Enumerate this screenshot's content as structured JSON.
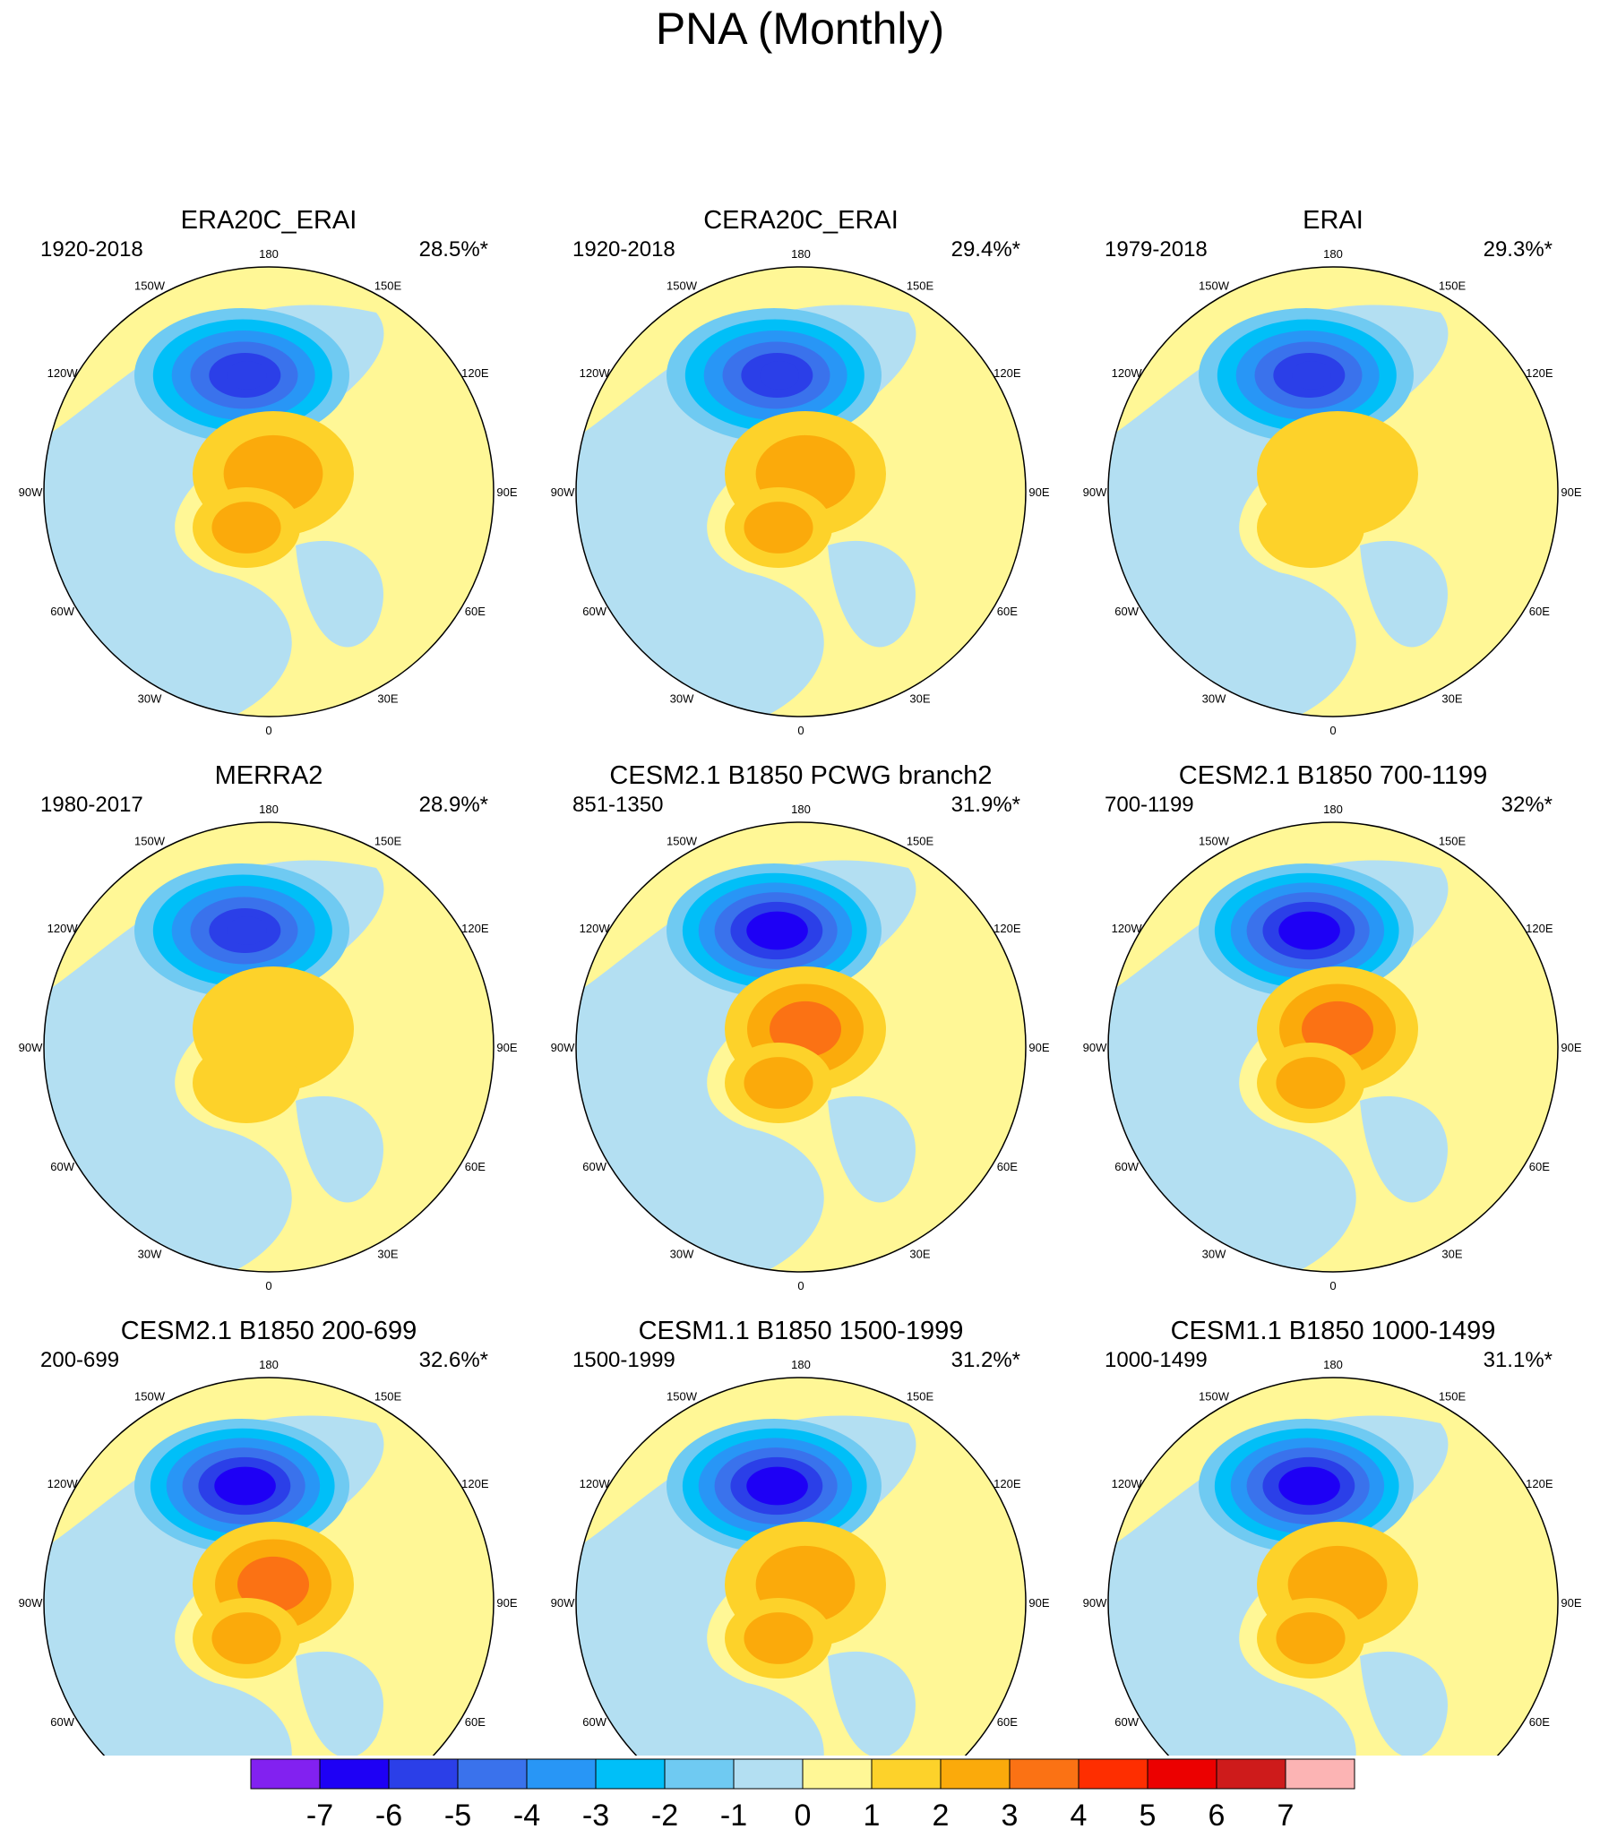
{
  "title": "PNA (Monthly)",
  "chart_data": {
    "type": "polar_contour_map_grid",
    "projection": "north polar stereographic",
    "longitude_labels": [
      "180",
      "150E",
      "120E",
      "90E",
      "60E",
      "30E",
      "0",
      "30W",
      "60W",
      "90W",
      "120W",
      "150W"
    ],
    "panels": [
      {
        "name": "ERA20C_ERAI",
        "period": "1920-2018",
        "variance": "28.5%*",
        "neg_peak": -5.6,
        "pos_peak": 2.6,
        "pos_secondary": 2.1
      },
      {
        "name": "CERA20C_ERAI",
        "period": "1920-2018",
        "variance": "29.4%*",
        "neg_peak": -5.5,
        "pos_peak": 2.4,
        "pos_secondary": 2.0
      },
      {
        "name": "ERAI",
        "period": "1979-2018",
        "variance": "29.3%*",
        "neg_peak": -5.4,
        "pos_peak": 1.8,
        "pos_secondary": 1.5
      },
      {
        "name": "MERRA2",
        "period": "1980-2017",
        "variance": "28.9%*",
        "neg_peak": -5.3,
        "pos_peak": 1.9,
        "pos_secondary": 1.6
      },
      {
        "name": "CESM2.1 B1850 PCWG branch2",
        "period": "851-1350",
        "variance": "31.9%*",
        "neg_peak": -6.4,
        "pos_peak": 3.3,
        "pos_secondary": 2.3
      },
      {
        "name": "CESM2.1 B1850 700-1199",
        "period": "700-1199",
        "variance": "32%*",
        "neg_peak": -6.3,
        "pos_peak": 3.4,
        "pos_secondary": 2.2
      },
      {
        "name": "CESM2.1 B1850 200-699",
        "period": "200-699",
        "variance": "32.6%*",
        "neg_peak": -6.2,
        "pos_peak": 3.3,
        "pos_secondary": 2.4
      },
      {
        "name": "CESM1.1 B1850 1500-1999",
        "period": "1500-1999",
        "variance": "31.2%*",
        "neg_peak": -6.1,
        "pos_peak": 2.8,
        "pos_secondary": 2.1
      },
      {
        "name": "CESM1.1 B1850 1000-1499",
        "period": "1000-1499",
        "variance": "31.1%*",
        "neg_peak": -6.2,
        "pos_peak": 2.8,
        "pos_secondary": 2.0
      }
    ],
    "colorbar": {
      "labels": [
        "-7",
        "-6",
        "-5",
        "-4",
        "-3",
        "-2",
        "-1",
        "0",
        "1",
        "2",
        "3",
        "4",
        "5",
        "6",
        "7"
      ],
      "colors": [
        "#8221f0",
        "#1e00f5",
        "#2b3fe8",
        "#3a72ec",
        "#2896f6",
        "#00bff8",
        "#6fcaf2",
        "#b3dff2",
        "#fff796",
        "#fdd22a",
        "#fbaa0b",
        "#fb7214",
        "#fe2e00",
        "#ec0000",
        "#ce1b1b",
        "#fcb4b4"
      ]
    }
  }
}
